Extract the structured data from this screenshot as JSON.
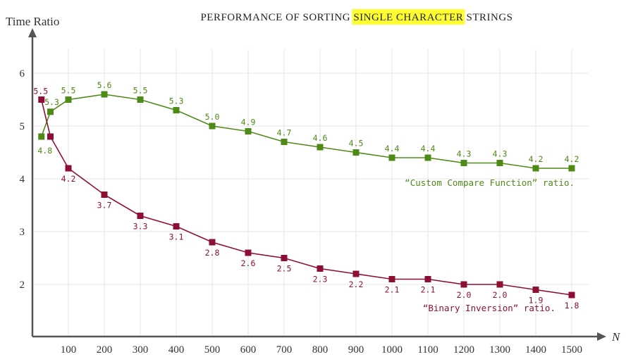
{
  "chart_data": {
    "type": "line",
    "title_parts": [
      "PERFORMANCE OF SORTING ",
      "SINGLE CHARACTER",
      " STRINGS"
    ],
    "title_highlight_color": "#ffff33",
    "ylabel": "Time Ratio",
    "xlabel": "N",
    "ylim": [
      1,
      6.6
    ],
    "yticks": [
      2,
      3,
      4,
      5,
      6
    ],
    "xticks": [
      100,
      200,
      300,
      400,
      500,
      600,
      700,
      800,
      900,
      1000,
      1100,
      1200,
      1300,
      1400,
      1500
    ],
    "grid": true,
    "series": [
      {
        "name": "“Custom Compare Function” ratio.",
        "color": "#4e8a16",
        "x": [
          25,
          50,
          100,
          200,
          300,
          400,
          500,
          600,
          700,
          800,
          900,
          1000,
          1100,
          1200,
          1300,
          1400,
          1500
        ],
        "values": [
          4.8,
          5.27,
          5.5,
          5.6,
          5.5,
          5.3,
          5.0,
          4.9,
          4.7,
          4.6,
          4.5,
          4.4,
          4.4,
          4.3,
          4.3,
          4.2,
          4.2
        ],
        "labels": [
          "4.8",
          "5.3",
          "5.5",
          "5.6",
          "5.5",
          "5.3",
          "5.0",
          "4.9",
          "4.7",
          "4.6",
          "4.5",
          "4.4",
          "4.4",
          "4.3",
          "4.3",
          "4.2",
          "4.2"
        ],
        "label_pos": [
          "below",
          "above",
          "above",
          "above",
          "above",
          "above",
          "above",
          "above",
          "above",
          "above",
          "above",
          "above",
          "above",
          "above",
          "above",
          "above",
          "above"
        ]
      },
      {
        "name": "“Binary Inversion” ratio.",
        "color": "#8e0f34",
        "x": [
          25,
          50,
          100,
          200,
          300,
          400,
          500,
          600,
          700,
          800,
          900,
          1000,
          1100,
          1200,
          1300,
          1400,
          1500
        ],
        "values": [
          5.5,
          4.8,
          4.2,
          3.7,
          3.3,
          3.1,
          2.8,
          2.6,
          2.5,
          2.3,
          2.2,
          2.1,
          2.1,
          2.0,
          2.0,
          1.9,
          1.8
        ],
        "labels": [
          "5.5",
          "",
          "4.2",
          "3.7",
          "3.3",
          "3.1",
          "2.8",
          "2.6",
          "2.5",
          "2.3",
          "2.2",
          "2.1",
          "2.1",
          "2.0",
          "2.0",
          "1.9",
          "1.8"
        ],
        "label_pos": [
          "above",
          "below",
          "below",
          "below",
          "below",
          "below",
          "below",
          "below",
          "below",
          "below",
          "below",
          "below",
          "below",
          "below",
          "below",
          "below",
          "below"
        ]
      }
    ]
  }
}
